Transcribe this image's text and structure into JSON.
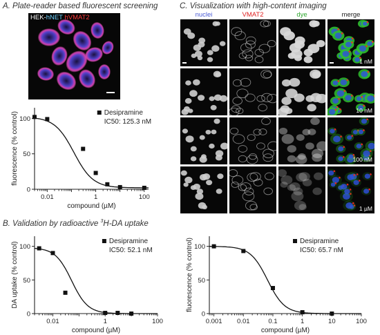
{
  "panels": {
    "a_title": "A. Plate-reader based fluorescent screening",
    "b_title_pre": "B. Validation by radioactive ",
    "b_title_sup": "3",
    "b_title_post": "H-DA uptake",
    "c_title": "C. Visualization with high-content imaging"
  },
  "micrograph_a": {
    "label_hek": "HEK-",
    "label_hnet": "hNET",
    "label_hvmat2": "hVMAT2",
    "colors": {
      "hek": "#ffffff",
      "hnet": "#6fd3ff",
      "hvmat2": "#ff3a3a"
    }
  },
  "grid_c": {
    "columns": [
      {
        "label": "nuclei",
        "color": "#4a5bd6"
      },
      {
        "label": "VMAT2",
        "color": "#e02020"
      },
      {
        "label": "dye",
        "color": "#2fa82f"
      },
      {
        "label": "merge",
        "color": "#222222"
      }
    ],
    "concentrations": [
      "1 nM",
      "10 nM",
      "100 nM",
      "1 µM"
    ],
    "fluorescence_levels": [
      1.0,
      0.92,
      0.3,
      0.08
    ]
  },
  "chart_data": [
    {
      "id": "A",
      "type": "scatter",
      "xscale": "log",
      "xlim": [
        0.003,
        150
      ],
      "ylim": [
        0,
        115
      ],
      "xticks": [
        0.01,
        1,
        100
      ],
      "xtick_labels": [
        "0.01",
        "1",
        "100"
      ],
      "yticks": [
        0,
        50,
        100
      ],
      "xlabel": "compound (µM)",
      "ylabel": "fluorescence (% control)",
      "legend_position": "top-right",
      "series": [
        {
          "name": "Desipramine",
          "annotation": "IC50: 125.3 nM",
          "x": [
            0.003,
            0.01,
            0.3,
            1,
            3,
            10,
            100
          ],
          "y": [
            102,
            99,
            57,
            23,
            7,
            3,
            2
          ],
          "fit": {
            "ic50": 0.1253,
            "top": 102,
            "bottom": 2,
            "hill": 1.1
          }
        }
      ]
    },
    {
      "id": "B",
      "type": "scatter",
      "xscale": "log",
      "xlim": [
        0.002,
        100
      ],
      "ylim": [
        0,
        115
      ],
      "xticks": [
        0.01,
        1,
        100
      ],
      "xtick_labels": [
        "0.01",
        "1",
        "100"
      ],
      "yticks": [
        0,
        50,
        100
      ],
      "xlabel": "compound (µM)",
      "ylabel": "DA uptake (% control)",
      "legend_position": "top-right",
      "series": [
        {
          "name": "Desipramine",
          "annotation": "IC50: 52.1 nM",
          "x": [
            0.003,
            0.01,
            0.03,
            1,
            3,
            10
          ],
          "y": [
            97,
            90,
            31,
            1,
            1,
            0
          ],
          "fit": {
            "ic50": 0.0521,
            "top": 98,
            "bottom": 0,
            "hill": 1.4
          }
        }
      ]
    },
    {
      "id": "C",
      "type": "scatter",
      "xscale": "log",
      "xlim": [
        0.0007,
        100
      ],
      "ylim": [
        0,
        115
      ],
      "xticks": [
        0.001,
        0.01,
        0.1,
        1,
        10,
        100
      ],
      "xtick_labels": [
        "0.001",
        "0.01",
        "0.1",
        "1",
        "10",
        "100"
      ],
      "yticks": [
        0,
        50,
        100
      ],
      "xlabel": "compound (µM)",
      "ylabel": "fluorescence (% control)",
      "legend_position": "top-right",
      "series": [
        {
          "name": "Desipramine",
          "annotation": "IC50: 65.7 nM",
          "x": [
            0.001,
            0.01,
            0.1,
            1,
            10
          ],
          "y": [
            100,
            93,
            38,
            2,
            0
          ],
          "fit": {
            "ic50": 0.0657,
            "top": 100,
            "bottom": 0,
            "hill": 1.5
          }
        }
      ]
    }
  ]
}
